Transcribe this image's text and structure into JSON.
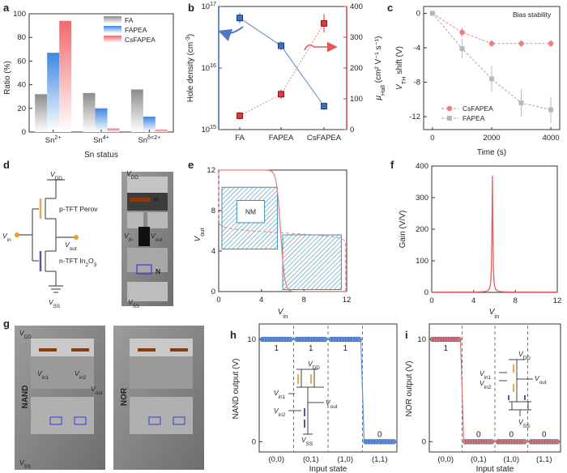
{
  "panel_labels": [
    "a",
    "b",
    "c",
    "d",
    "e",
    "f",
    "g",
    "h",
    "i"
  ],
  "colors": {
    "fa": "#8c8c8c",
    "fapea": "#3f86e0",
    "csfapea": "#f2696b",
    "blue_line": "#4f78c4",
    "red_line": "#e05a5a",
    "hatch": "#3d8fb8",
    "pink": "#f08a8a",
    "dark_blue_marker": "#2d5aa6"
  },
  "chart_data": [
    {
      "panel": "a",
      "type": "bar",
      "categories": [
        "Sn2+",
        "Sn4+",
        "Snδ-2+"
      ],
      "category_labels": [
        {
          "base": "Sn",
          "sup": "2+"
        },
        {
          "base": "Sn",
          "sup": "4+"
        },
        {
          "base": "Sn",
          "sup": "δ<2+"
        }
      ],
      "series": [
        {
          "name": "FA",
          "values": [
            32,
            33,
            36
          ]
        },
        {
          "name": "FAPEA",
          "values": [
            67,
            20,
            13
          ]
        },
        {
          "name": "CsFAPEA",
          "values": [
            94,
            3,
            2
          ]
        }
      ],
      "xlabel": "Sn status",
      "ylabel": "Ratio (%)",
      "ylim": [
        0,
        100
      ],
      "yticks": [
        0,
        20,
        40,
        60,
        80,
        100
      ],
      "legend": "top-right"
    },
    {
      "panel": "b",
      "type": "line",
      "categories": [
        "FA",
        "FAPEA",
        "CsFAPEA"
      ],
      "series": [
        {
          "name": "Hole density",
          "axis": "left",
          "scale": "log",
          "values": [
            6.5e+16,
            2.3e+16,
            2400000000000000.0
          ],
          "errors_log": [
            0.08,
            0.07,
            0.06
          ]
        },
        {
          "name": "μHall",
          "axis": "right",
          "values": [
            45,
            115,
            345
          ],
          "errors": [
            12,
            15,
            30
          ]
        }
      ],
      "ylabel_left": "Hole density (cm⁻³)",
      "ylabel_right": {
        "base": "μ",
        "sub": "Hall",
        "unit": "(cm² V⁻¹ s⁻¹)"
      },
      "ylim_left": [
        1000000000000000.0,
        1e+17
      ],
      "yticks_left": [
        {
          "b": "10",
          "e": "15"
        },
        {
          "b": "10",
          "e": "16"
        },
        {
          "b": "10",
          "e": "17"
        }
      ],
      "ylim_right": [
        0,
        400
      ],
      "yticks_right": [
        0,
        100,
        200,
        300,
        400
      ]
    },
    {
      "panel": "c",
      "type": "line",
      "title": "Bias stability",
      "x": [
        0,
        1000,
        2000,
        3000,
        4000
      ],
      "series": [
        {
          "name": "CsFAPEA",
          "values": [
            0,
            -2.2,
            -3.5,
            -3.5,
            -3.5
          ],
          "errors": [
            0.2,
            0.5,
            0.4,
            0.4,
            0.4
          ]
        },
        {
          "name": "FAPEA",
          "values": [
            0,
            -4.1,
            -7.6,
            -10.4,
            -11.2
          ],
          "errors": [
            0.2,
            1.1,
            1.5,
            1.6,
            1.5
          ]
        }
      ],
      "xlabel": "Time (s)",
      "ylabel": {
        "base": "V",
        "sub": "TH",
        "rest": " shift (V)"
      },
      "xlim": [
        -300,
        4300
      ],
      "ylim": [
        -13.5,
        0.8
      ],
      "xticks": [
        0,
        2000,
        4000
      ],
      "yticks": [
        0,
        -4,
        -8,
        -12
      ]
    },
    {
      "panel": "e",
      "type": "line",
      "xlabel": {
        "base": "V",
        "sub": "in"
      },
      "ylabel": {
        "base": "V",
        "sub": "out"
      },
      "xlim": [
        0,
        12
      ],
      "ylim": [
        0,
        12
      ],
      "xticks": [
        0,
        4,
        8,
        12
      ],
      "yticks": [
        0,
        4,
        8,
        12
      ],
      "box_label": "NM"
    },
    {
      "panel": "f",
      "type": "line",
      "xlabel": {
        "base": "V",
        "sub": "in"
      },
      "ylabel": "Gain (V/V)",
      "xlim": [
        0,
        12
      ],
      "ylim": [
        0,
        400
      ],
      "xticks": [
        0,
        4,
        8,
        12
      ],
      "yticks": [
        0,
        100,
        200,
        300,
        400
      ],
      "peak": {
        "x": 5.8,
        "y": 368
      }
    },
    {
      "panel": "h",
      "type": "scatter",
      "categories": [
        "(0,0)",
        "(0,1)",
        "(1,0)",
        "(1,1)"
      ],
      "levels": [
        10,
        10,
        10,
        0
      ],
      "level_labels": [
        "1",
        "1",
        "1",
        "0"
      ],
      "xlabel": "Input state",
      "ylabel": "NAND output (V)",
      "yticks": [
        0,
        10
      ]
    },
    {
      "panel": "i",
      "type": "scatter",
      "categories": [
        "(0,0)",
        "(0,1)",
        "(1,0)",
        "(1,1)"
      ],
      "levels": [
        10,
        0,
        0,
        0
      ],
      "level_labels": [
        "1",
        "0",
        "0",
        "0"
      ],
      "xlabel": "Input state",
      "ylabel": "NOR output (V)",
      "yticks": [
        0,
        10
      ]
    }
  ],
  "circuit_d": {
    "vdd": {
      "base": "V",
      "sub": "DD"
    },
    "vss": {
      "base": "V",
      "sub": "SS"
    },
    "vin": {
      "base": "V",
      "sub": "in"
    },
    "vout": {
      "base": "V",
      "sub": "out"
    },
    "ptft": "p-TFT Perov",
    "ntft": {
      "pre": "n-TFT In",
      "sub": "2",
      "post": "O",
      "sub2": "3"
    },
    "photo_p": "P",
    "photo_n": "N"
  },
  "photo_g": {
    "nand": "NAND",
    "nor": "NOR",
    "vin1": {
      "base": "V",
      "sub": "in1"
    },
    "vin2": {
      "base": "V",
      "sub": "in2"
    }
  }
}
